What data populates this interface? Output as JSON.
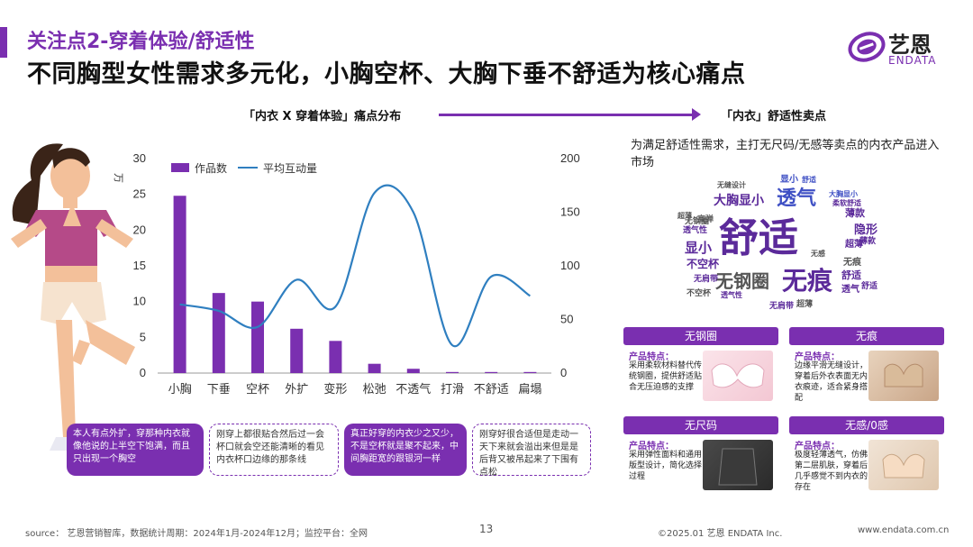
{
  "header": {
    "kicker": "关注点2-穿着体验/舒适性",
    "headline": "不同胸型女性需求多元化，小胸空杯、大胸下垂不舒适为核心痛点"
  },
  "logo": {
    "cn": "艺恩",
    "en": "ENDATA",
    "icon": "endata-logo-icon"
  },
  "sections": {
    "left_title": "「内衣 X 穿着体验」痛点分布",
    "right_title": "「内衣」舒适性卖点"
  },
  "chart_data": {
    "type": "bar+line",
    "categories": [
      "小胸",
      "下垂",
      "空杯",
      "外扩",
      "变形",
      "松弛",
      "不透气",
      "打滑",
      "不舒适",
      "扁塌"
    ],
    "series": [
      {
        "name": "作品数",
        "type": "bar",
        "axis": "left",
        "values": [
          24.8,
          11.2,
          10.0,
          6.2,
          4.5,
          1.3,
          0.6,
          0.15,
          0.15,
          0.15
        ],
        "color": "#7a2fb0"
      },
      {
        "name": "平均互动量",
        "type": "line",
        "axis": "right",
        "values": [
          64,
          58,
          43,
          87,
          62,
          168,
          150,
          26,
          90,
          72
        ],
        "color": "#2f7fc0"
      }
    ],
    "y_left": {
      "unit": "万",
      "ticks": [
        0,
        5,
        10,
        15,
        20,
        25,
        30
      ],
      "range": [
        0,
        30
      ]
    },
    "y_right": {
      "ticks": [
        0,
        50,
        100,
        150,
        200
      ],
      "range": [
        0,
        200
      ]
    },
    "legend": "top-left",
    "grid": false
  },
  "quotes": [
    "本人有点外扩，穿那种内衣就像他说的上半空下饱满，而且只出现一个胸空",
    "刚穿上都很贴合然后过一会杯口就会空还能清晰的看见内衣杯口边缘的那条线",
    "真正好穿的内衣少之又少，不是空杯就是聚不起来，中间胸距宽的跟银河一样",
    "刚穿好很合适但是走动一天下来就会溢出来但是是后背又被吊起来了下围有点松"
  ],
  "right": {
    "intro": "为满足舒适性需求，主打无尺码/无感等卖点的内衣产品进入市场",
    "cloud_words": [
      "舒适",
      "无痕",
      "透气",
      "无钢圈",
      "大胸显小",
      "显小",
      "不空杯",
      "隐形",
      "薄款",
      "超薄",
      "舒适",
      "透气",
      "无痕",
      "显小",
      "无肩带",
      "透气性",
      "高弹",
      "无钢圈",
      "无肩带",
      "超薄",
      "不空杯",
      "无缝设计",
      "大胸显小",
      "柔软舒适",
      "薄款",
      "舒适",
      "无感",
      "透气性",
      "超薄",
      "舒适"
    ],
    "cards": [
      {
        "title": "无钢圈",
        "feature_label": "产品特点：",
        "desc": "采用柔软材料替代传统钢圈，提供舒适贴合无压迫感的支撑"
      },
      {
        "title": "无痕",
        "feature_label": "产品特点：",
        "desc": "边缘平滑无缝设计，穿着后外衣表面无内衣痕迹，适合紧身搭配"
      },
      {
        "title": "无尺码",
        "feature_label": "产品特点：",
        "desc": "采用弹性面料和通用版型设计，简化选择过程"
      },
      {
        "title": "无感/0感",
        "feature_label": "产品特点：",
        "desc": "极度轻薄透气，仿佛第二层肌肤，穿着后几乎感觉不到内衣的存在"
      }
    ]
  },
  "footer": {
    "source": "source： 艺恩营销智库，数据统计周期：2024年1月-2024年12月；监控平台：全网",
    "page": "13",
    "copyright": "©2025.01  艺恩 ENDATA Inc.",
    "url": "www.endata.com.cn"
  }
}
